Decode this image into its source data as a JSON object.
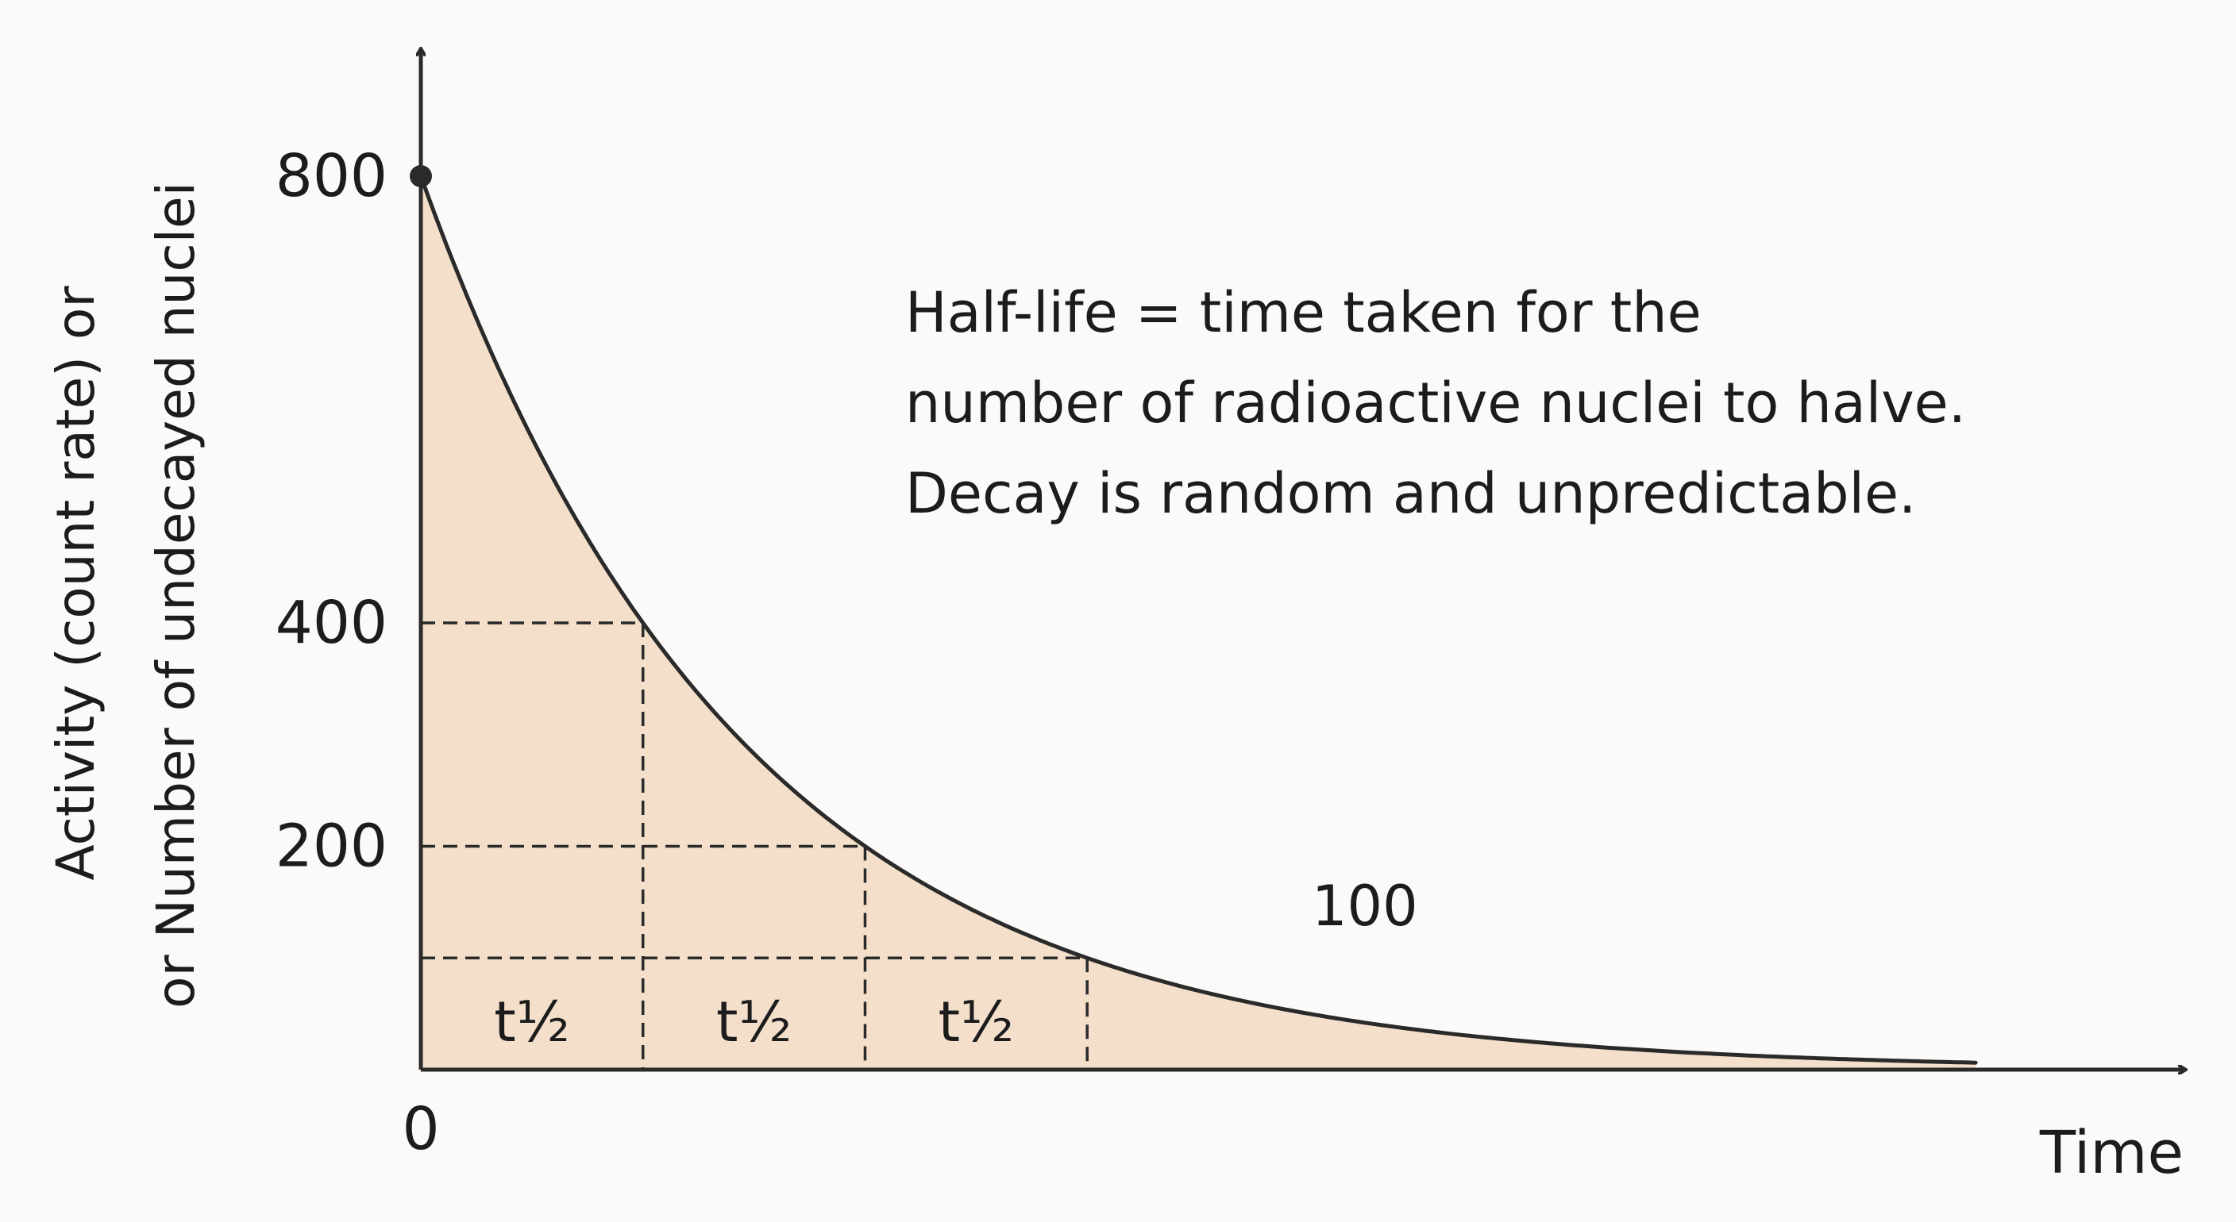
{
  "chart_data": {
    "type": "area",
    "xlabel": "Time",
    "ylabel_line1": "Activity (count rate) or",
    "ylabel_line2": "or Number of undecayed nuclei",
    "origin_label": "0",
    "x": [
      0,
      1,
      2,
      3,
      4,
      5,
      6,
      7
    ],
    "values": [
      800,
      400,
      200,
      100,
      50,
      25,
      12.5,
      6.25
    ],
    "xlim": [
      0,
      7.4
    ],
    "ylim": [
      0,
      820
    ],
    "y_tick_labels": [
      {
        "value": 800,
        "label": "800"
      },
      {
        "value": 400,
        "label": "400"
      },
      {
        "value": 200,
        "label": "200"
      }
    ],
    "half_life_label": "t½",
    "half_life_marks": [
      {
        "t": 1,
        "n": 400
      },
      {
        "t": 2,
        "n": 200
      },
      {
        "t": 3,
        "n": 100
      }
    ],
    "point_label": {
      "value": 100,
      "label": "100"
    },
    "annotation_lines": [
      "Half-life = time taken for the",
      "number of radioactive nuclei to halve.",
      "Decay is random and unpredictable."
    ],
    "colors": {
      "fill": "#f3dfca",
      "line": "#2a2a2a",
      "axis": "#2a2a2a",
      "background": "#fbfaf8"
    },
    "grid": false,
    "legend": "none"
  }
}
